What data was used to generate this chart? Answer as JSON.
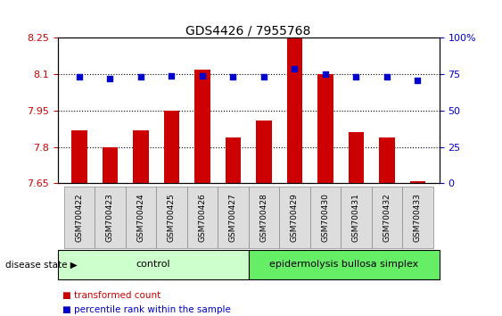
{
  "title": "GDS4426 / 7955768",
  "samples": [
    "GSM700422",
    "GSM700423",
    "GSM700424",
    "GSM700425",
    "GSM700426",
    "GSM700427",
    "GSM700428",
    "GSM700429",
    "GSM700430",
    "GSM700431",
    "GSM700432",
    "GSM700433"
  ],
  "bar_values": [
    7.87,
    7.8,
    7.87,
    7.95,
    8.12,
    7.84,
    7.91,
    8.25,
    8.1,
    7.86,
    7.84,
    7.66
  ],
  "percentile_values": [
    73,
    72,
    73,
    74,
    74,
    73,
    73,
    79,
    75,
    73,
    73,
    71
  ],
  "ylim_left": [
    7.65,
    8.25
  ],
  "ylim_right": [
    0,
    100
  ],
  "yticks_left": [
    7.65,
    7.8,
    7.95,
    8.1,
    8.25
  ],
  "yticks_left_labels": [
    "7.65",
    "7.8",
    "7.95",
    "8.1",
    "8.25"
  ],
  "yticks_right": [
    0,
    25,
    50,
    75,
    100
  ],
  "yticks_right_labels": [
    "0",
    "25",
    "50",
    "75",
    "100%"
  ],
  "bar_color": "#cc0000",
  "dot_color": "#0000cc",
  "hlines": [
    7.8,
    7.95,
    8.1
  ],
  "control_samples": 6,
  "control_label": "control",
  "disease_label": "epidermolysis bullosa simplex",
  "disease_state_label": "disease state",
  "legend_bar_label": "transformed count",
  "legend_dot_label": "percentile rank within the sample",
  "control_color": "#ccffcc",
  "disease_color": "#66ee66",
  "bar_baseline": 7.65,
  "sample_panel_color": "#dddddd",
  "title_fontsize": 10,
  "tick_fontsize": 8,
  "bar_width": 0.5
}
